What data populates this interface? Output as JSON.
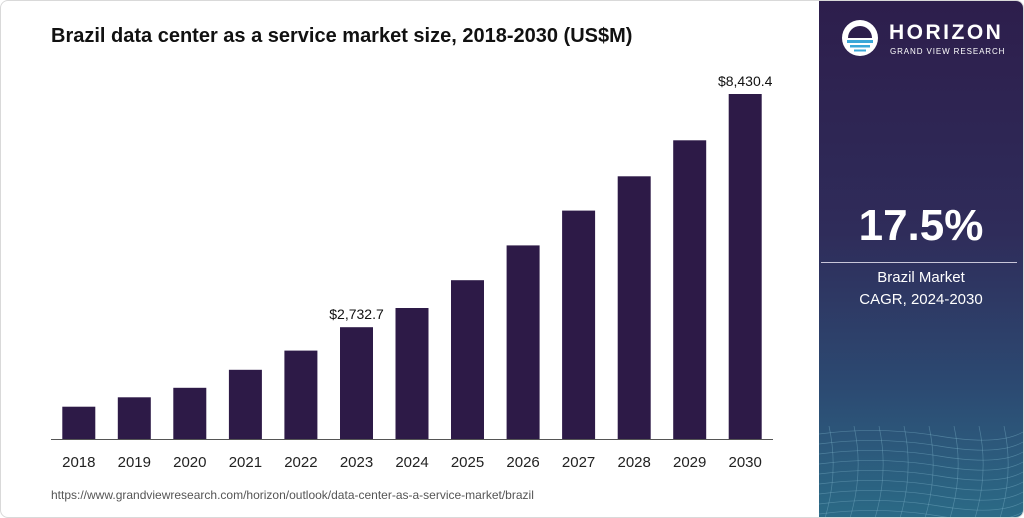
{
  "chart_data": {
    "type": "bar",
    "title": "Brazil data center as a service market size, 2018-2030 (US$M)",
    "categories": [
      "2018",
      "2019",
      "2020",
      "2021",
      "2022",
      "2023",
      "2024",
      "2025",
      "2026",
      "2027",
      "2028",
      "2029",
      "2030"
    ],
    "values": [
      790,
      1020,
      1250,
      1690,
      2160,
      2732.7,
      3200,
      3880,
      4730,
      5580,
      6420,
      7300,
      8430.4
    ],
    "data_labels": [
      {
        "category": "2023",
        "text": "$2,732.7"
      },
      {
        "category": "2030",
        "text": "$8,430.4"
      }
    ],
    "xlabel": "",
    "ylabel": "",
    "ylim": [
      0,
      8430.4
    ],
    "grid": false,
    "bar_color": "#2d1a47"
  },
  "source_url": "https://www.grandviewresearch.com/horizon/outlook/data-center-as-a-service-market/brazil",
  "brand": {
    "name": "HORIZON",
    "tagline": "GRAND VIEW RESEARCH"
  },
  "stat": {
    "value": "17.5%",
    "label_line1": "Brazil Market",
    "label_line2": "CAGR, 2024-2030"
  }
}
